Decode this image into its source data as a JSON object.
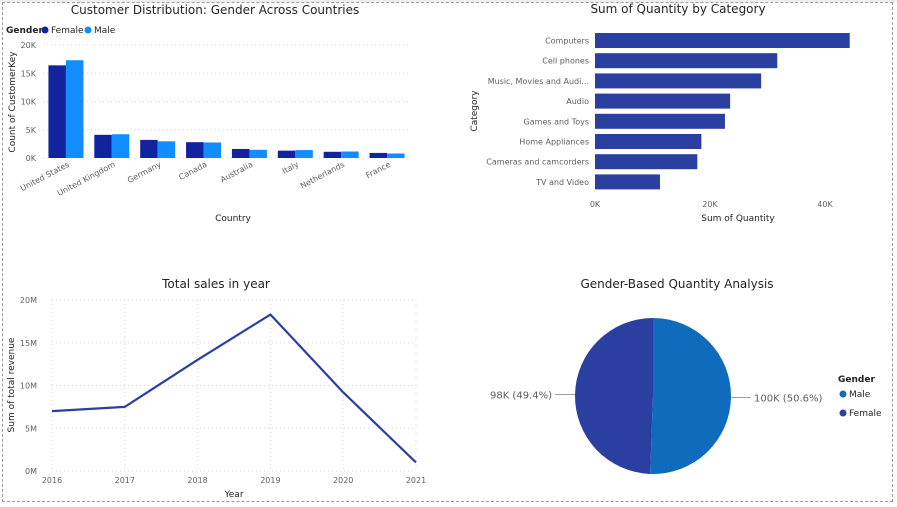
{
  "chart_data": [
    {
      "type": "bar",
      "title": "Customer Distribution: Gender Across Countries",
      "xlabel": "Country",
      "ylabel": "Count of CustomerKey",
      "legend_title": "Gender",
      "legend_position": "top-left",
      "categories": [
        "United States",
        "United Kingdom",
        "Germany",
        "Canada",
        "Australia",
        "Italy",
        "Netherlands",
        "France"
      ],
      "series": [
        {
          "name": "Female",
          "color": "#12239E",
          "values": [
            16400,
            4100,
            3200,
            2800,
            1600,
            1300,
            1100,
            900
          ]
        },
        {
          "name": "Male",
          "color": "#118DFF",
          "values": [
            17300,
            4200,
            2950,
            2750,
            1450,
            1400,
            1150,
            800
          ]
        }
      ],
      "ylim": [
        0,
        20000
      ],
      "yticks": [
        "0K",
        "5K",
        "10K",
        "15K",
        "20K"
      ],
      "grid": true
    },
    {
      "type": "bar",
      "orientation": "horizontal",
      "title": "Sum of Quantity by Category",
      "xlabel": "Sum of Quantity",
      "ylabel": "Category",
      "color": "#2B3FA0",
      "categories": [
        "Computers",
        "Cell phones",
        "Music, Movies and Audi...",
        "Audio",
        "Games and Toys",
        "Home Appliances",
        "Cameras and camcorders",
        "TV and Video"
      ],
      "values": [
        44300,
        31700,
        28900,
        23500,
        22600,
        18500,
        17800,
        11300
      ],
      "xlim": [
        0,
        47000
      ],
      "xticks": [
        {
          "value": 0,
          "label": "0K"
        },
        {
          "value": 20000,
          "label": "20K"
        },
        {
          "value": 40000,
          "label": "40K"
        }
      ],
      "grid": false
    },
    {
      "type": "line",
      "title": "Total sales in year",
      "xlabel": "Year",
      "ylabel": "Sum of total revenue",
      "color": "#2B3FA0",
      "x": [
        "2016",
        "2017",
        "2018",
        "2019",
        "2020",
        "2021"
      ],
      "values": [
        7000000,
        7500000,
        13000000,
        18300000,
        9200000,
        1000000
      ],
      "ylim": [
        0,
        20000000
      ],
      "yticks": [
        "0M",
        "5M",
        "10M",
        "15M",
        "20M"
      ],
      "grid": true
    },
    {
      "type": "pie",
      "title": "Gender-Based Quantity Analysis",
      "legend_title": "Gender",
      "legend_position": "right",
      "slices": [
        {
          "name": "Male",
          "value": 100000,
          "percent": 50.6,
          "label": "100K (50.6%)",
          "color": "#0F6CBD"
        },
        {
          "name": "Female",
          "value": 98000,
          "percent": 49.4,
          "label": "98K (49.4%)",
          "color": "#2B3FA0"
        }
      ]
    }
  ]
}
